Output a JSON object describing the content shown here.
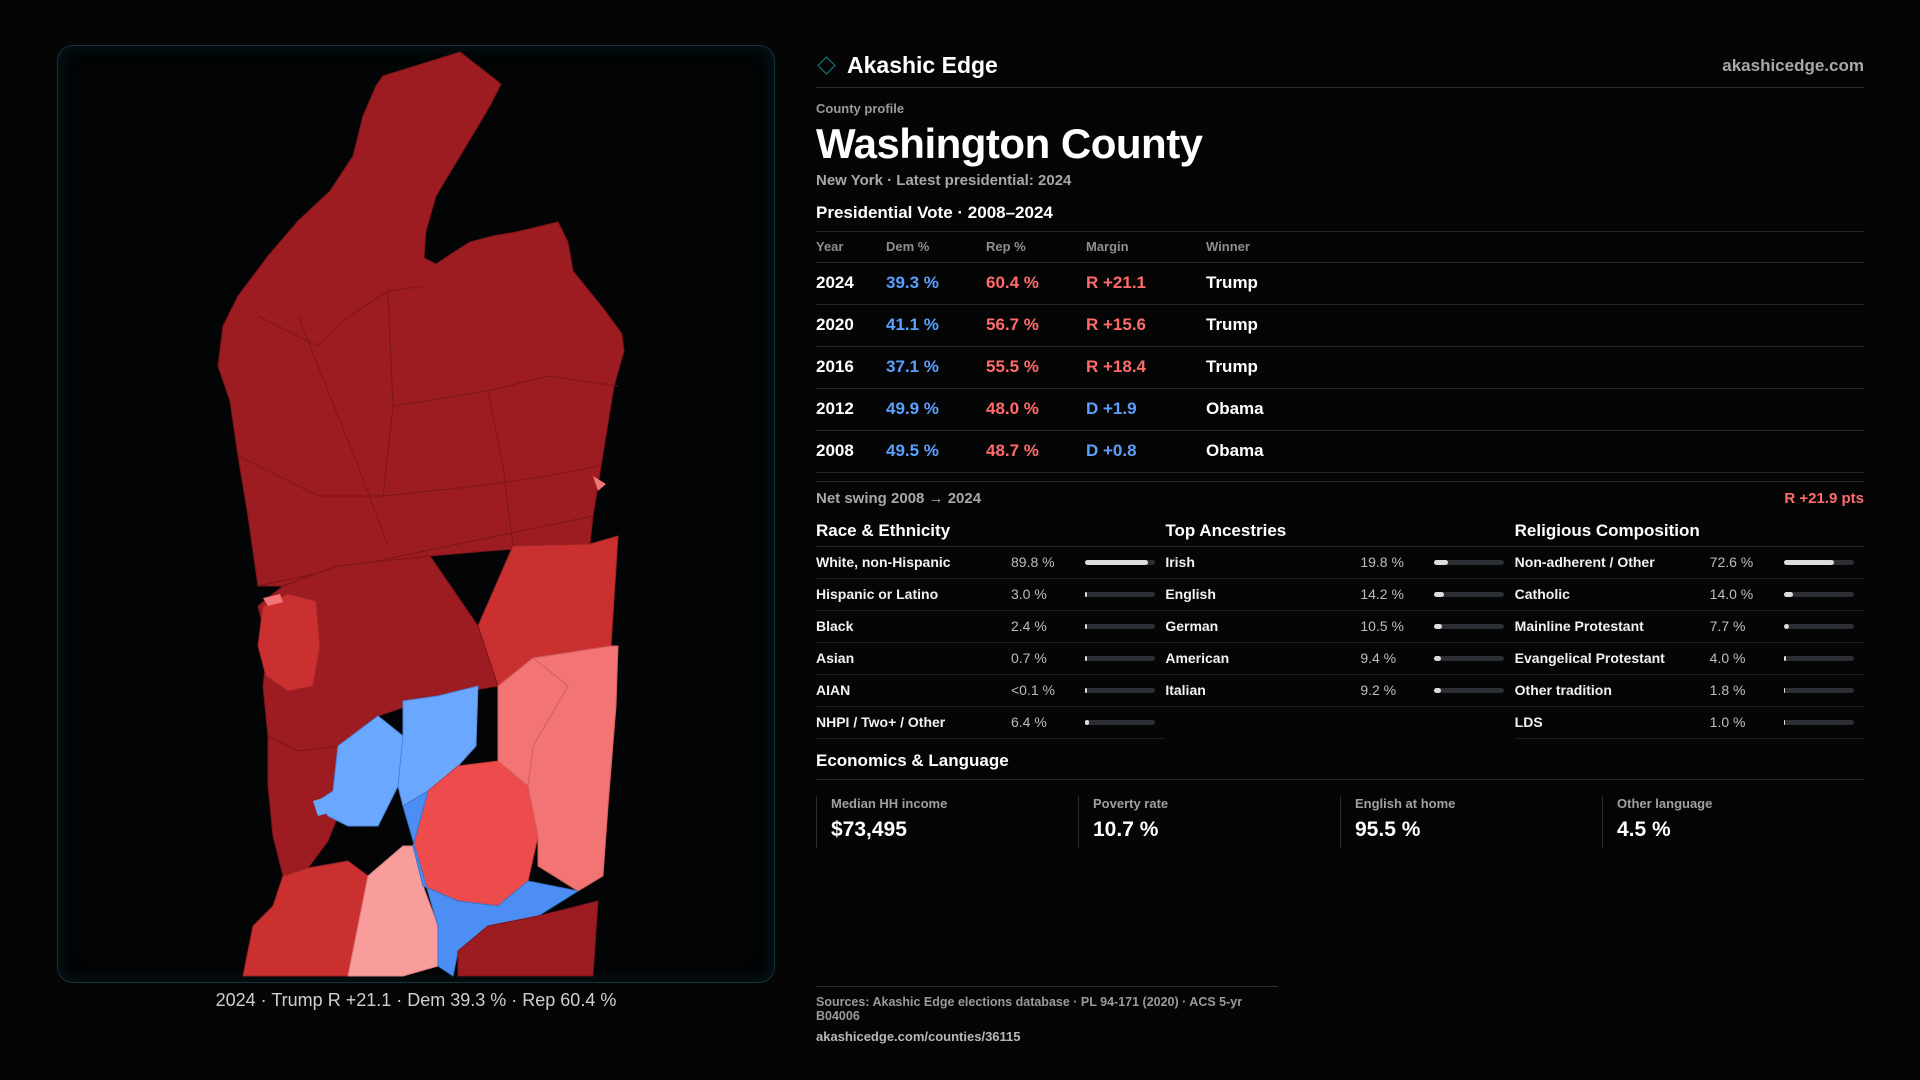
{
  "brand": {
    "name": "Akashic Edge",
    "url": "akashicedge.com",
    "icon": "diamond-logo-icon"
  },
  "profile": {
    "kicker": "County profile",
    "title": "Washington County",
    "subline": "New York  · Latest presidential: 2024"
  },
  "vote": {
    "title": "Presidential Vote · 2008–2024",
    "headers": [
      "Year",
      "Dem %",
      "Rep %",
      "Margin",
      "Winner"
    ],
    "rows": [
      {
        "year": "2024",
        "dem": "39.3 %",
        "rep": "60.4 %",
        "margin": "R +21.1",
        "winner": "Trump"
      },
      {
        "year": "2020",
        "dem": "41.1 %",
        "rep": "56.7 %",
        "margin": "R +15.6",
        "winner": "Trump"
      },
      {
        "year": "2016",
        "dem": "37.1 %",
        "rep": "55.5 %",
        "margin": "R +18.4",
        "winner": "Trump"
      },
      {
        "year": "2012",
        "dem": "49.9 %",
        "rep": "48.0 %",
        "margin": "D +1.9",
        "winner": "Obama"
      },
      {
        "year": "2008",
        "dem": "49.5 %",
        "rep": "48.7 %",
        "margin": "D +0.8",
        "winner": "Obama"
      }
    ],
    "swing_label": "Net swing 2008 → 2024",
    "swing_value": "R +21.9 pts"
  },
  "race": {
    "title": "Race & Ethnicity",
    "items": [
      {
        "label": "White, non-Hispanic",
        "value": "89.8 %",
        "share": 0.898
      },
      {
        "label": "Hispanic or Latino",
        "value": "3.0 %",
        "share": 0.03
      },
      {
        "label": "Black",
        "value": "2.4 %",
        "share": 0.024
      },
      {
        "label": "Asian",
        "value": "0.7 %",
        "share": 0.007
      },
      {
        "label": "AIAN",
        "value": "<0.1 %",
        "share": 0.001
      },
      {
        "label": "NHPI / Two+ / Other",
        "value": "6.4 %",
        "share": 0.064
      }
    ]
  },
  "ancestry": {
    "title": "Top Ancestries",
    "items": [
      {
        "label": "Irish",
        "value": "19.8 %",
        "share": 0.198
      },
      {
        "label": "English",
        "value": "14.2 %",
        "share": 0.142
      },
      {
        "label": "German",
        "value": "10.5 %",
        "share": 0.105
      },
      {
        "label": "American",
        "value": "9.4 %",
        "share": 0.094
      },
      {
        "label": "Italian",
        "value": "9.2 %",
        "share": 0.092
      }
    ]
  },
  "religion": {
    "title": "Religious Composition",
    "items": [
      {
        "label": "Non-adherent / Other",
        "value": "72.6 %",
        "share": 0.726
      },
      {
        "label": "Catholic",
        "value": "14.0 %",
        "share": 0.14
      },
      {
        "label": "Mainline Protestant",
        "value": "7.7 %",
        "share": 0.077
      },
      {
        "label": "Evangelical Protestant",
        "value": "4.0 %",
        "share": 0.04
      },
      {
        "label": "Other tradition",
        "value": "1.8 %",
        "share": 0.018
      },
      {
        "label": "LDS",
        "value": "1.0 %",
        "share": 0.01
      }
    ]
  },
  "economics": {
    "title": "Economics & Language",
    "items": [
      {
        "label": "Median HH income",
        "value": "$73,495"
      },
      {
        "label": "Poverty rate",
        "value": "10.7 %"
      },
      {
        "label": "English at home",
        "value": "95.5 %"
      },
      {
        "label": "Other language",
        "value": "4.5 %"
      }
    ]
  },
  "map": {
    "caption": "2024 · Trump R +21.1 · Dem 39.3 % · Rep 60.4 %",
    "colors": {
      "r_strong": "#9c1c22",
      "r_mid": "#c9302f",
      "r_light": "#ee4c4c",
      "r_pale": "#f27474",
      "r_faint": "#f89c9c",
      "d_light": "#6aa8ff",
      "d_mid": "#4d8ef5"
    }
  },
  "sources": {
    "line": "Sources: Akashic Edge elections database · PL 94-171 (2020) · ACS 5-yr B04006",
    "url": "akashicedge.com/counties/36115"
  }
}
